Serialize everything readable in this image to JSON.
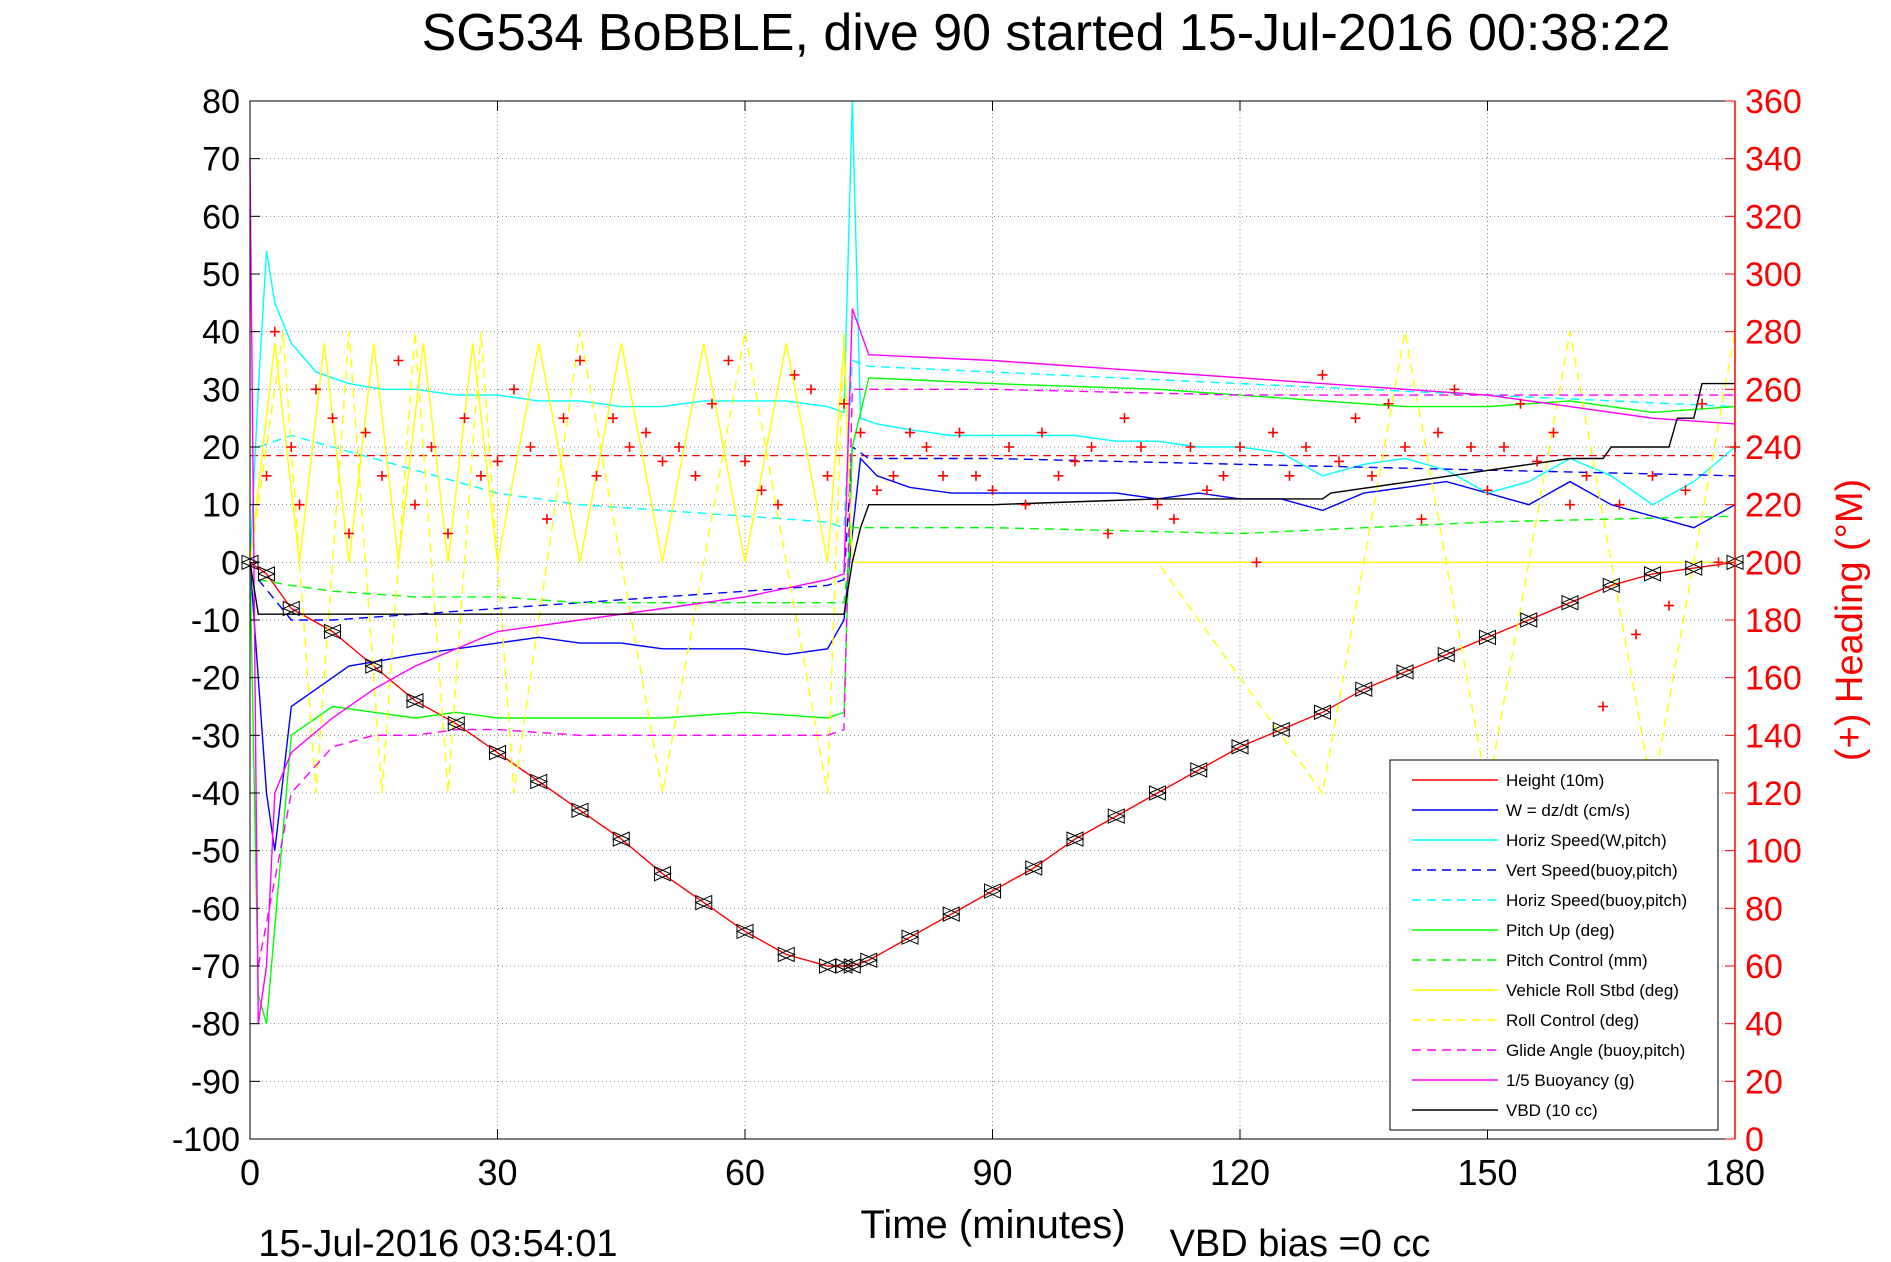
{
  "title": "SG534 BoBBLE, dive 90 started 15-Jul-2016 00:38:22",
  "footer": {
    "timestamp": "15-Jul-2016 03:54:01",
    "vbd_bias": "VBD bias =0 cc"
  },
  "colors": {
    "heading_axis": "#ff0000",
    "height": "#ff0000",
    "w": "#0000ff",
    "horiz_speed": "#00ffff",
    "pitch": "#00ff00",
    "roll": "#ffff00",
    "glide": "#ff00ff",
    "vbd": "#000000"
  },
  "chart_data": {
    "type": "line",
    "title": "SG534 BoBBLE, dive 90 started 15-Jul-2016 00:38:22",
    "xlabel": "Time (minutes)",
    "ylabel": "",
    "y2label": "(+) Heading (°M)",
    "xlim": [
      0,
      180
    ],
    "ylim": [
      -100,
      80
    ],
    "y2lim": [
      0,
      360
    ],
    "xticks": [
      0,
      30,
      60,
      90,
      120,
      150,
      180
    ],
    "yticks": [
      80,
      70,
      60,
      50,
      40,
      30,
      20,
      10,
      0,
      -10,
      -20,
      -30,
      -40,
      -50,
      -60,
      -70,
      -80,
      -90,
      -100
    ],
    "y2ticks": [
      360,
      340,
      320,
      300,
      280,
      260,
      240,
      220,
      200,
      180,
      160,
      140,
      120,
      100,
      80,
      60,
      40,
      20,
      0
    ],
    "grid": true,
    "legend_position": "bottom-right",
    "heading_reference": 237,
    "legend": [
      {
        "name": "Height (10m)",
        "color": "#ff0000",
        "dash": "solid"
      },
      {
        "name": "W = dz/dt (cm/s)",
        "color": "#0000ff",
        "dash": "solid"
      },
      {
        "name": "Horiz Speed(W,pitch)",
        "color": "#00ffff",
        "dash": "solid"
      },
      {
        "name": "Vert Speed(buoy,pitch)",
        "color": "#0000ff",
        "dash": "dashed"
      },
      {
        "name": "Horiz Speed(buoy,pitch)",
        "color": "#00ffff",
        "dash": "dashed"
      },
      {
        "name": "Pitch Up (deg)",
        "color": "#00ff00",
        "dash": "solid"
      },
      {
        "name": "Pitch Control (mm)",
        "color": "#00ff00",
        "dash": "dashed"
      },
      {
        "name": "Vehicle Roll Stbd (deg)",
        "color": "#ffff00",
        "dash": "solid"
      },
      {
        "name": "Roll Control (deg)",
        "color": "#ffff00",
        "dash": "dashed"
      },
      {
        "name": "Glide Angle (buoy,pitch)",
        "color": "#ff00ff",
        "dash": "dashed"
      },
      {
        "name": "1/5 Buoyancy (g)",
        "color": "#ff00ff",
        "dash": "solid"
      },
      {
        "name": "VBD (10 cc)",
        "color": "#000000",
        "dash": "solid"
      }
    ],
    "series": [
      {
        "name": "Height (10m)",
        "axis": "left",
        "color": "#ff0000",
        "x": [
          0,
          2,
          5,
          10,
          15,
          20,
          25,
          30,
          35,
          40,
          45,
          50,
          55,
          60,
          65,
          70,
          72,
          73,
          75,
          80,
          85,
          90,
          95,
          100,
          105,
          110,
          115,
          120,
          125,
          130,
          135,
          140,
          145,
          150,
          155,
          160,
          165,
          170,
          175,
          180
        ],
        "y": [
          0,
          -2,
          -8,
          -12,
          -18,
          -24,
          -28,
          -33,
          -38,
          -43,
          -48,
          -54,
          -59,
          -64,
          -68,
          -70,
          -70,
          -70,
          -69,
          -65,
          -61,
          -57,
          -53,
          -48,
          -44,
          -40,
          -36,
          -32,
          -29,
          -26,
          -22,
          -19,
          -16,
          -13,
          -10,
          -7,
          -4,
          -2,
          -1,
          0
        ]
      },
      {
        "name": "W = dz/dt (cm/s)",
        "axis": "left",
        "color": "#0000ff",
        "x": [
          0,
          2,
          3,
          5,
          8,
          12,
          16,
          20,
          25,
          30,
          35,
          40,
          45,
          50,
          55,
          60,
          65,
          70,
          72,
          73,
          74,
          76,
          80,
          85,
          90,
          95,
          100,
          105,
          110,
          115,
          120,
          125,
          130,
          135,
          140,
          145,
          150,
          155,
          160,
          165,
          170,
          175,
          180
        ],
        "y": [
          0,
          -40,
          -50,
          -25,
          -22,
          -18,
          -17,
          -16,
          -15,
          -14,
          -13,
          -14,
          -14,
          -15,
          -15,
          -15,
          -16,
          -15,
          -10,
          5,
          18,
          15,
          13,
          12,
          12,
          12,
          12,
          12,
          11,
          12,
          11,
          11,
          9,
          12,
          13,
          14,
          12,
          10,
          14,
          10,
          8,
          6,
          10
        ]
      },
      {
        "name": "Horiz Speed(W,pitch)",
        "axis": "left",
        "color": "#00ffff",
        "x": [
          0,
          1,
          2,
          3,
          5,
          8,
          12,
          16,
          20,
          25,
          30,
          35,
          40,
          45,
          50,
          55,
          60,
          65,
          70,
          72,
          73,
          74,
          76,
          80,
          85,
          90,
          95,
          100,
          105,
          110,
          115,
          120,
          125,
          130,
          135,
          140,
          145,
          150,
          155,
          160,
          165,
          170,
          175,
          180
        ],
        "y": [
          0,
          30,
          54,
          45,
          38,
          33,
          31,
          30,
          30,
          29,
          29,
          28,
          28,
          27,
          27,
          28,
          28,
          28,
          27,
          26,
          80,
          25,
          24,
          23,
          22,
          22,
          22,
          22,
          21,
          21,
          20,
          20,
          19,
          15,
          17,
          18,
          16,
          12,
          14,
          18,
          15,
          10,
          14,
          20
        ]
      },
      {
        "name": "Vert Speed(buoy,pitch)",
        "axis": "left",
        "color": "#0000ff",
        "dash": "dashed",
        "x": [
          1,
          5,
          10,
          20,
          30,
          40,
          50,
          60,
          70,
          72,
          73,
          75,
          90,
          120,
          150,
          180
        ],
        "y": [
          -3,
          -10,
          -10,
          -9,
          -8,
          -7,
          -6,
          -5,
          -4,
          -3,
          20,
          18,
          18,
          17,
          16,
          15
        ]
      },
      {
        "name": "Horiz Speed(buoy,pitch)",
        "axis": "left",
        "color": "#00ffff",
        "dash": "dashed",
        "x": [
          1,
          5,
          10,
          15,
          20,
          25,
          30,
          40,
          50,
          60,
          70,
          72,
          73,
          75,
          90,
          120,
          150,
          180
        ],
        "y": [
          20,
          22,
          20,
          18,
          16,
          14,
          12,
          10,
          9,
          8,
          7,
          6,
          35,
          34,
          33,
          31,
          29,
          27
        ]
      },
      {
        "name": "Pitch Up (deg)",
        "axis": "left",
        "color": "#00ff00",
        "x": [
          0,
          1,
          2,
          5,
          10,
          15,
          20,
          25,
          30,
          40,
          50,
          60,
          70,
          72,
          73,
          75,
          90,
          110,
          130,
          140,
          150,
          160,
          170,
          180
        ],
        "y": [
          0,
          -75,
          -80,
          -30,
          -25,
          -26,
          -27,
          -26,
          -27,
          -27,
          -27,
          -26,
          -27,
          -26,
          20,
          32,
          31,
          30,
          28,
          27,
          27,
          28,
          26,
          27
        ]
      },
      {
        "name": "Pitch Control (mm)",
        "axis": "left",
        "color": "#00ff00",
        "dash": "dashed",
        "x": [
          1,
          5,
          10,
          20,
          30,
          40,
          50,
          60,
          70,
          72,
          73,
          75,
          90,
          120,
          150,
          180
        ],
        "y": [
          -3,
          -4,
          -5,
          -6,
          -6,
          -7,
          -7,
          -7,
          -7,
          -7,
          6,
          6,
          6,
          5,
          7,
          8
        ]
      },
      {
        "name": "Vehicle Roll Stbd (deg)",
        "axis": "left",
        "color": "#ffff00",
        "x": [
          0,
          3,
          6,
          9,
          12,
          15,
          18,
          21,
          24,
          27,
          30,
          35,
          40,
          45,
          50,
          55,
          60,
          65,
          70,
          72,
          73,
          75,
          80,
          90,
          100,
          110,
          120,
          130,
          140,
          150,
          160,
          170,
          180
        ],
        "y": [
          0,
          38,
          0,
          38,
          0,
          38,
          0,
          38,
          0,
          38,
          0,
          38,
          0,
          38,
          0,
          38,
          0,
          38,
          0,
          38,
          0,
          0,
          0,
          0,
          0,
          0,
          0,
          0,
          0,
          0,
          0,
          0,
          0
        ]
      },
      {
        "name": "Roll Control (deg)",
        "axis": "left",
        "color": "#ffff00",
        "dash": "dashed",
        "x": [
          0,
          4,
          8,
          12,
          16,
          20,
          24,
          28,
          32,
          40,
          50,
          60,
          70,
          72,
          73,
          76,
          90,
          110,
          130,
          140,
          150,
          160,
          170,
          180
        ],
        "y": [
          0,
          40,
          -40,
          40,
          -40,
          40,
          -40,
          40,
          -40,
          40,
          -40,
          40,
          -40,
          40,
          0,
          0,
          0,
          0,
          -40,
          40,
          -40,
          40,
          -40,
          40
        ]
      },
      {
        "name": "Glide Angle (buoy,pitch)",
        "axis": "left",
        "color": "#ff00ff",
        "dash": "dashed",
        "x": [
          1,
          5,
          10,
          15,
          20,
          25,
          30,
          40,
          50,
          60,
          70,
          72,
          73,
          75,
          90,
          120,
          150,
          180
        ],
        "y": [
          -70,
          -40,
          -32,
          -30,
          -30,
          -29,
          -29,
          -30,
          -30,
          -30,
          -30,
          -29,
          30,
          30,
          30,
          29,
          29,
          29
        ]
      },
      {
        "name": "1/5 Buoyancy (g)",
        "axis": "left",
        "color": "#ff00ff",
        "x": [
          0,
          1,
          2,
          3,
          5,
          10,
          15,
          20,
          30,
          40,
          50,
          60,
          70,
          72,
          73,
          74,
          75,
          90,
          110,
          130,
          140,
          150,
          160,
          170,
          180
        ],
        "y": [
          70,
          -80,
          -70,
          -40,
          -33,
          -27,
          -22,
          -18,
          -12,
          -10,
          -8,
          -6,
          -3,
          -2,
          44,
          40,
          36,
          35,
          33,
          31,
          30,
          29,
          27,
          25,
          24
        ]
      },
      {
        "name": "VBD (10 cc)",
        "axis": "left",
        "color": "#000000",
        "x": [
          0,
          1,
          2,
          72,
          73,
          74,
          75,
          90,
          110,
          120,
          125,
          130,
          131,
          160,
          164,
          165,
          166,
          172,
          173,
          175,
          176,
          180
        ],
        "y": [
          0,
          -9,
          -9,
          -9,
          0,
          6,
          10,
          10,
          11,
          11,
          11,
          11,
          12,
          18,
          18,
          20,
          20,
          20,
          25,
          25,
          31,
          31
        ]
      },
      {
        "name": "(+) Heading (°M)",
        "axis": "right",
        "color": "#ff0000",
        "marker": "+",
        "x": [
          2,
          3,
          5,
          6,
          8,
          10,
          12,
          14,
          16,
          18,
          20,
          22,
          24,
          26,
          28,
          30,
          32,
          34,
          36,
          38,
          40,
          42,
          44,
          46,
          48,
          50,
          52,
          54,
          56,
          58,
          60,
          62,
          64,
          66,
          68,
          70,
          72,
          74,
          76,
          78,
          80,
          82,
          84,
          86,
          88,
          90,
          92,
          94,
          96,
          98,
          100,
          102,
          104,
          106,
          108,
          110,
          112,
          114,
          116,
          118,
          120,
          122,
          124,
          126,
          128,
          130,
          132,
          134,
          136,
          138,
          140,
          142,
          144,
          146,
          148,
          150,
          152,
          154,
          156,
          158,
          160,
          162,
          164,
          166,
          168,
          170,
          172,
          174,
          176,
          178,
          180
        ],
        "y": [
          230,
          280,
          240,
          220,
          260,
          250,
          210,
          245,
          230,
          270,
          220,
          240,
          210,
          250,
          230,
          235,
          260,
          240,
          215,
          250,
          270,
          230,
          250,
          240,
          245,
          235,
          240,
          230,
          255,
          270,
          235,
          225,
          220,
          265,
          260,
          230,
          255,
          245,
          225,
          230,
          245,
          240,
          230,
          245,
          230,
          225,
          240,
          220,
          245,
          230,
          235,
          240,
          210,
          250,
          240,
          220,
          215,
          240,
          225,
          230,
          240,
          200,
          245,
          230,
          240,
          265,
          235,
          250,
          230,
          255,
          240,
          215,
          245,
          260,
          240,
          225,
          240,
          255,
          235,
          245,
          220,
          230,
          150,
          220,
          175,
          230,
          185,
          225,
          255,
          200,
          240
        ]
      }
    ]
  }
}
